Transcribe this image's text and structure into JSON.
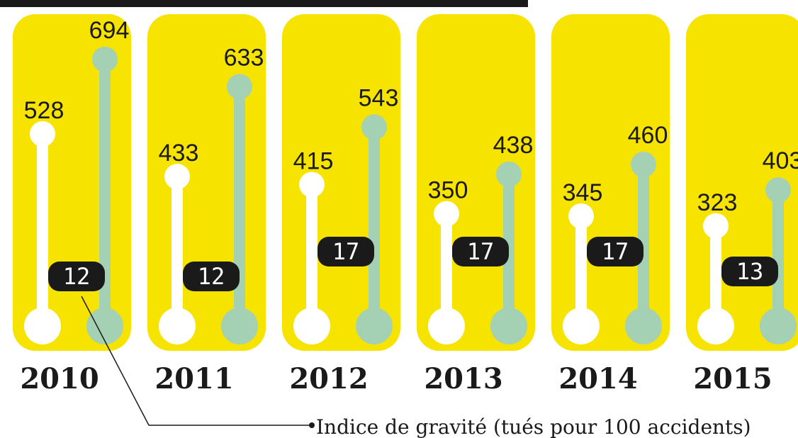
{
  "chart_data": {
    "type": "lollipop",
    "categories": [
      "2010",
      "2011",
      "2012",
      "2013",
      "2014",
      "2015"
    ],
    "series": [
      {
        "color": "#ffffff",
        "values": [
          528,
          433,
          415,
          350,
          345,
          323
        ]
      },
      {
        "color": "#a4d0b4",
        "values": [
          694,
          633,
          543,
          438,
          460,
          403
        ]
      }
    ],
    "index_values": [
      12,
      12,
      17,
      17,
      17,
      13
    ],
    "annotation": "Indice de gravité (tués pour 100 accidents)",
    "ylim": [
      100,
      700
    ],
    "panel_color": "#f7e300"
  }
}
